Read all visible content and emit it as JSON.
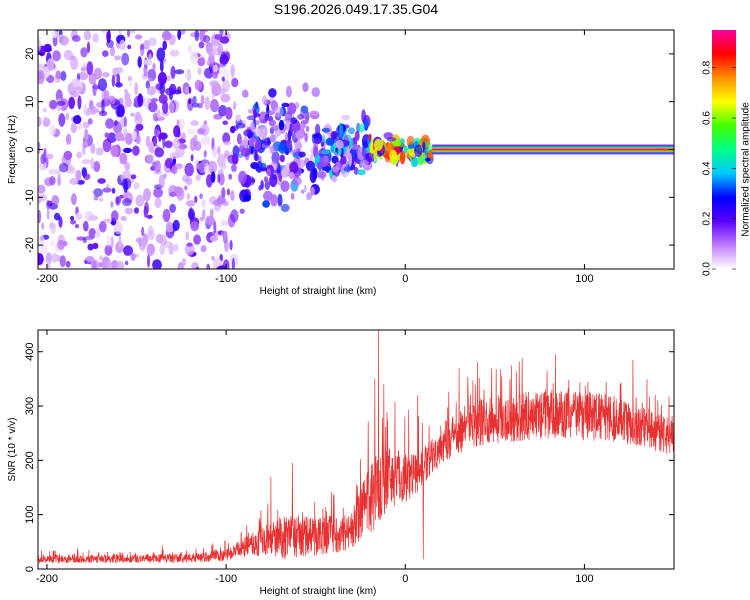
{
  "title": "S196.2026.049.17.35.G04",
  "chart_data": [
    {
      "type": "heatmap",
      "xlabel": "Height of straight line (km)",
      "ylabel": "Frequency (Hz)",
      "xlim": [
        -205,
        150
      ],
      "ylim": [
        -25,
        25
      ],
      "xticks": [
        -200,
        -100,
        0,
        100
      ],
      "xtick_labels": [
        "-200",
        "-100",
        "0",
        "100"
      ],
      "yticks": [
        -20,
        -10,
        0,
        10,
        20
      ],
      "ytick_labels": [
        "-20",
        "-10",
        "0",
        "10",
        "20"
      ],
      "colorbar": {
        "label": "Normalized spectral amplitude",
        "range": [
          0,
          0.95
        ],
        "ticks": [
          0.0,
          0.2,
          0.4,
          0.6,
          0.8
        ],
        "tick_labels": [
          "0.0",
          "0.2",
          "0.4",
          "0.6",
          "0.8"
        ],
        "colors": [
          "#ffffff",
          "#c07cff",
          "#5a00ff",
          "#0000ff",
          "#00c8ff",
          "#00ff88",
          "#44ff00",
          "#ffff00",
          "#ff9000",
          "#ff0000",
          "#ff00a0"
        ]
      },
      "line_feature": {
        "x_start": 15,
        "x_end": 150,
        "frequency": 0,
        "amplitude": 0.95
      },
      "regions": [
        {
          "x_range": [
            -205,
            -95
          ],
          "freq_spread": 25,
          "amplitude_range": [
            0.05,
            0.25
          ]
        },
        {
          "x_range": [
            -95,
            -50
          ],
          "freq_spread": 14,
          "amplitude_range": [
            0.1,
            0.35
          ]
        },
        {
          "x_range": [
            -50,
            -20
          ],
          "freq_spread": 8,
          "amplitude_range": [
            0.15,
            0.45
          ]
        },
        {
          "x_range": [
            -20,
            15
          ],
          "freq_spread": 3,
          "amplitude_range": [
            0.4,
            0.9
          ]
        }
      ]
    },
    {
      "type": "line",
      "xlabel": "Height of straight line (km)",
      "ylabel": "SNR (10 * v/v)",
      "xlim": [
        -205,
        150
      ],
      "ylim": [
        0,
        440
      ],
      "xticks": [
        -200,
        -100,
        0,
        100
      ],
      "xtick_labels": [
        "-200",
        "-100",
        "0",
        "100"
      ],
      "yticks": [
        0,
        100,
        200,
        300,
        400
      ],
      "ytick_labels": [
        "0",
        "100",
        "200",
        "300",
        "400"
      ],
      "series": [
        {
          "name": "SNR",
          "color": "#e83030",
          "envelope": [
            {
              "x": -205,
              "base": 18,
              "noise": 12
            },
            {
              "x": -120,
              "base": 20,
              "noise": 14
            },
            {
              "x": -100,
              "base": 25,
              "noise": 18
            },
            {
              "x": -90,
              "base": 40,
              "noise": 30
            },
            {
              "x": -80,
              "base": 50,
              "noise": 45
            },
            {
              "x": -65,
              "base": 60,
              "noise": 70
            },
            {
              "x": -50,
              "base": 60,
              "noise": 60
            },
            {
              "x": -30,
              "base": 70,
              "noise": 60
            },
            {
              "x": -25,
              "base": 100,
              "noise": 80
            },
            {
              "x": -18,
              "base": 140,
              "noise": 120
            },
            {
              "x": -10,
              "base": 170,
              "noise": 110
            },
            {
              "x": 0,
              "base": 170,
              "noise": 80
            },
            {
              "x": 10,
              "base": 185,
              "noise": 60
            },
            {
              "x": 20,
              "base": 230,
              "noise": 60
            },
            {
              "x": 30,
              "base": 255,
              "noise": 70
            },
            {
              "x": 50,
              "base": 275,
              "noise": 75
            },
            {
              "x": 80,
              "base": 285,
              "noise": 75
            },
            {
              "x": 110,
              "base": 280,
              "noise": 75
            },
            {
              "x": 130,
              "base": 265,
              "noise": 65
            },
            {
              "x": 150,
              "base": 240,
              "noise": 55
            }
          ],
          "spikes": [
            {
              "x": -15,
              "y": 440
            },
            {
              "x": -12,
              "y": 340
            },
            {
              "x": -17,
              "y": 350
            },
            {
              "x": 10,
              "y": 18
            },
            {
              "x": 7,
              "y": 320
            },
            {
              "x": -63,
              "y": 195
            },
            {
              "x": -75,
              "y": 170
            },
            {
              "x": 30,
              "y": 370
            },
            {
              "x": 127,
              "y": 385
            }
          ]
        }
      ]
    }
  ]
}
